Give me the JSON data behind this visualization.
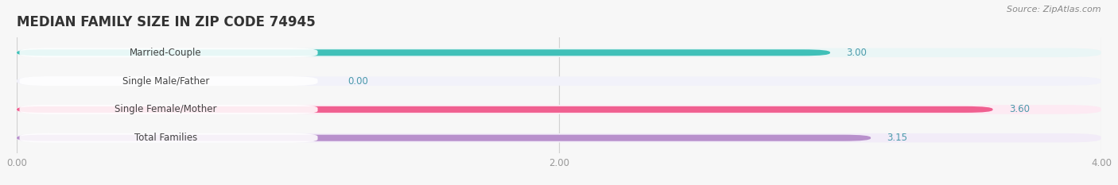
{
  "title": "MEDIAN FAMILY SIZE IN ZIP CODE 74945",
  "source": "Source: ZipAtlas.com",
  "categories": [
    "Married-Couple",
    "Single Male/Father",
    "Single Female/Mother",
    "Total Families"
  ],
  "values": [
    3.0,
    0.0,
    3.6,
    3.15
  ],
  "bar_colors": [
    "#40c0b8",
    "#a0b0e8",
    "#f06090",
    "#b890cc"
  ],
  "bar_bg_colors": [
    "#eaf6f6",
    "#f2f2fa",
    "#fdeaf3",
    "#f2ecf8"
  ],
  "label_bg_color": "#ffffff",
  "xlim": [
    0,
    4.0
  ],
  "xticks": [
    0.0,
    2.0,
    4.0
  ],
  "xtick_labels": [
    "0.00",
    "2.00",
    "4.00"
  ],
  "value_color": "#4a9aaa",
  "label_fontsize": 8.5,
  "title_fontsize": 12,
  "value_fontsize": 8.5,
  "bg_color": "#f7f7f7",
  "bar_height": 0.32,
  "label_text_colors": [
    "#555555",
    "#555555",
    "#555555",
    "#555555"
  ]
}
